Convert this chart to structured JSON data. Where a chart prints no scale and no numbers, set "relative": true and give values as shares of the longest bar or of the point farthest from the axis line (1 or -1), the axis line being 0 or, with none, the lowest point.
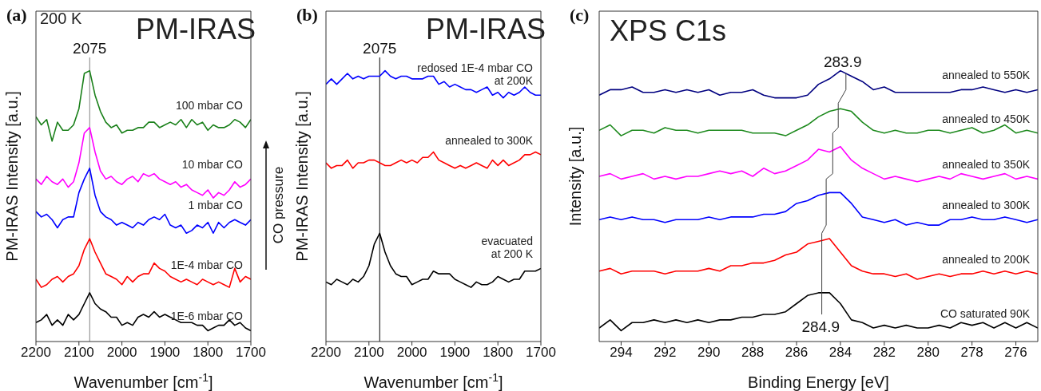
{
  "chart_data": [
    {
      "type": "line",
      "title": "(a)",
      "xlabel": "Wavenumber [cm$^{-1}$]",
      "ylabel": "PM-IRAS Intensity [a.u.]",
      "relative": true,
      "marker": "none",
      "line_style": "solid",
      "xlim": [
        2200,
        1700
      ],
      "xticks": [
        2200,
        2100,
        2000,
        1900,
        1800,
        1700
      ],
      "x": [
        2200,
        2187.5,
        2175,
        2162.5,
        2150,
        2137.5,
        2125,
        2112.5,
        2100,
        2087.5,
        2075,
        2062.5,
        2050,
        2037.5,
        2025,
        2012.5,
        2000,
        1987.5,
        1975,
        1962.5,
        1950,
        1937.5,
        1925,
        1912.5,
        1900,
        1887.5,
        1875,
        1862.5,
        1850,
        1837.5,
        1825,
        1812.5,
        1800,
        1787.5,
        1775,
        1762.5,
        1750,
        1737.5,
        1725,
        1712.5,
        1700
      ],
      "series": [
        {
          "name": "100 mbar CO",
          "color": "#1a801a",
          "values": [
            0.83,
            0.8,
            0.82,
            0.74,
            0.81,
            0.78,
            0.78,
            0.8,
            0.86,
            0.99,
            1.0,
            0.91,
            0.85,
            0.81,
            0.79,
            0.8,
            0.77,
            0.78,
            0.78,
            0.79,
            0.79,
            0.81,
            0.81,
            0.79,
            0.8,
            0.81,
            0.8,
            0.82,
            0.79,
            0.82,
            0.8,
            0.81,
            0.78,
            0.8,
            0.79,
            0.79,
            0.8,
            0.82,
            0.81,
            0.79,
            0.82
          ]
        },
        {
          "name": "10 mbar CO",
          "color": "#ff00ff",
          "values": [
            0.6,
            0.58,
            0.61,
            0.59,
            0.58,
            0.6,
            0.57,
            0.59,
            0.66,
            0.77,
            0.79,
            0.7,
            0.63,
            0.6,
            0.61,
            0.59,
            0.58,
            0.6,
            0.61,
            0.59,
            0.62,
            0.61,
            0.62,
            0.6,
            0.59,
            0.58,
            0.59,
            0.57,
            0.58,
            0.56,
            0.55,
            0.54,
            0.56,
            0.53,
            0.55,
            0.54,
            0.56,
            0.59,
            0.57,
            0.58,
            0.6
          ]
        },
        {
          "name": "1 mbar CO",
          "color": "#0000ff",
          "values": [
            0.48,
            0.46,
            0.47,
            0.45,
            0.42,
            0.45,
            0.46,
            0.46,
            0.55,
            0.6,
            0.64,
            0.54,
            0.48,
            0.46,
            0.45,
            0.43,
            0.44,
            0.43,
            0.42,
            0.44,
            0.43,
            0.45,
            0.46,
            0.45,
            0.47,
            0.43,
            0.42,
            0.43,
            0.4,
            0.41,
            0.43,
            0.42,
            0.44,
            0.4,
            0.44,
            0.42,
            0.44,
            0.45,
            0.44,
            0.43,
            0.45
          ]
        },
        {
          "name": "1E-4 mbar CO",
          "color": "#ff0000",
          "values": [
            0.23,
            0.2,
            0.21,
            0.23,
            0.24,
            0.22,
            0.24,
            0.25,
            0.28,
            0.34,
            0.38,
            0.33,
            0.29,
            0.25,
            0.24,
            0.23,
            0.21,
            0.24,
            0.22,
            0.24,
            0.25,
            0.25,
            0.29,
            0.27,
            0.26,
            0.24,
            0.23,
            0.22,
            0.23,
            0.22,
            0.21,
            0.23,
            0.22,
            0.21,
            0.22,
            0.21,
            0.2,
            0.27,
            0.22,
            0.24,
            0.23
          ]
        },
        {
          "name": "1E-6 mbar CO",
          "color": "#000000",
          "values": [
            0.07,
            0.08,
            0.1,
            0.06,
            0.08,
            0.06,
            0.1,
            0.08,
            0.1,
            0.14,
            0.18,
            0.14,
            0.12,
            0.11,
            0.09,
            0.09,
            0.06,
            0.07,
            0.06,
            0.09,
            0.1,
            0.09,
            0.11,
            0.09,
            0.1,
            0.09,
            0.08,
            0.07,
            0.07,
            0.07,
            0.06,
            0.06,
            0.04,
            0.05,
            0.06,
            0.06,
            0.08,
            0.06,
            0.07,
            0.05,
            0.04
          ]
        }
      ],
      "ref_lines": [
        {
          "axis": "x",
          "value": 2075,
          "label": "2075",
          "color": "#808080"
        }
      ],
      "annotations": [
        "200 K",
        "PM-IRAS",
        "CO pressure"
      ]
    },
    {
      "type": "line",
      "title": "(b)",
      "xlabel": "Wavenumber [cm$^{-1}$]",
      "ylabel": "PM-IRAS Intensity [a.u.]",
      "relative": true,
      "marker": "none",
      "line_style": "solid",
      "xlim": [
        2200,
        1700
      ],
      "xticks": [
        2200,
        2100,
        2000,
        1900,
        1800,
        1700
      ],
      "x": [
        2200,
        2187.5,
        2175,
        2162.5,
        2150,
        2137.5,
        2125,
        2112.5,
        2100,
        2087.5,
        2075,
        2062.5,
        2050,
        2037.5,
        2025,
        2012.5,
        2000,
        1987.5,
        1975,
        1962.5,
        1950,
        1937.5,
        1925,
        1912.5,
        1900,
        1887.5,
        1875,
        1862.5,
        1850,
        1837.5,
        1825,
        1812.5,
        1800,
        1787.5,
        1775,
        1762.5,
        1750,
        1737.5,
        1725,
        1712.5,
        1700
      ],
      "series": [
        {
          "name": "redosed 1E-4 mbar CO at 200K",
          "color": "#0000ff",
          "values": [
            0.95,
            0.97,
            0.95,
            0.97,
            0.99,
            0.97,
            0.98,
            0.97,
            0.98,
            0.98,
            0.98,
            1.0,
            0.98,
            0.97,
            0.98,
            0.98,
            0.97,
            0.97,
            0.97,
            0.98,
            0.98,
            0.95,
            0.96,
            0.94,
            0.95,
            0.94,
            0.93,
            0.93,
            0.92,
            0.93,
            0.94,
            0.91,
            0.92,
            0.9,
            0.92,
            0.91,
            0.92,
            0.94,
            0.92,
            0.91,
            0.91
          ]
        },
        {
          "name": "annealed to 300K",
          "color": "#ff0000",
          "values": [
            0.66,
            0.64,
            0.65,
            0.65,
            0.67,
            0.64,
            0.66,
            0.66,
            0.67,
            0.67,
            0.66,
            0.65,
            0.65,
            0.66,
            0.67,
            0.66,
            0.67,
            0.66,
            0.68,
            0.68,
            0.7,
            0.67,
            0.66,
            0.65,
            0.64,
            0.65,
            0.64,
            0.65,
            0.66,
            0.65,
            0.64,
            0.67,
            0.65,
            0.67,
            0.65,
            0.66,
            0.67,
            0.69,
            0.69,
            0.7,
            0.69
          ]
        },
        {
          "name": "evacuated at 200 K",
          "color": "#000000",
          "values": [
            0.22,
            0.21,
            0.23,
            0.22,
            0.21,
            0.23,
            0.22,
            0.24,
            0.28,
            0.36,
            0.4,
            0.33,
            0.28,
            0.25,
            0.24,
            0.24,
            0.21,
            0.22,
            0.23,
            0.23,
            0.26,
            0.25,
            0.25,
            0.25,
            0.23,
            0.22,
            0.21,
            0.2,
            0.22,
            0.21,
            0.21,
            0.22,
            0.24,
            0.23,
            0.22,
            0.23,
            0.23,
            0.26,
            0.26,
            0.26,
            0.27
          ]
        }
      ],
      "ref_lines": [
        {
          "axis": "x",
          "value": 2075,
          "label": "2075",
          "color": "#000000"
        }
      ],
      "annotations": [
        "PM-IRAS"
      ]
    },
    {
      "type": "line",
      "title": "(c)",
      "xlabel": "Binding Energy [eV]",
      "ylabel": "Intensity [a.u.]",
      "relative": true,
      "marker": "none",
      "line_style": "solid",
      "xlim": [
        295,
        275
      ],
      "xticks": [
        294,
        292,
        290,
        288,
        286,
        284,
        282,
        280,
        278,
        276
      ],
      "x": [
        295,
        294.5,
        294,
        293.5,
        293,
        292.5,
        292,
        291.5,
        291,
        290.5,
        290,
        289.5,
        289,
        288.5,
        288,
        287.5,
        287,
        286.5,
        286,
        285.5,
        285,
        284.5,
        284,
        283.5,
        283,
        282.5,
        282,
        281.5,
        281,
        280.5,
        280,
        279.5,
        279,
        278.5,
        278,
        277.5,
        277,
        276.5,
        276,
        275.5,
        275
      ],
      "series": [
        {
          "name": "annealed to 550K",
          "color": "#000080",
          "values": [
            0.91,
            0.93,
            0.93,
            0.94,
            0.92,
            0.92,
            0.93,
            0.92,
            0.93,
            0.92,
            0.93,
            0.91,
            0.92,
            0.92,
            0.93,
            0.91,
            0.9,
            0.9,
            0.9,
            0.91,
            0.95,
            0.97,
            1.0,
            0.98,
            0.96,
            0.93,
            0.94,
            0.92,
            0.92,
            0.92,
            0.92,
            0.92,
            0.92,
            0.93,
            0.93,
            0.94,
            0.93,
            0.92,
            0.93,
            0.92,
            0.93
          ]
        },
        {
          "name": "annealed to 450K",
          "color": "#1e8a1e",
          "values": [
            0.78,
            0.8,
            0.76,
            0.78,
            0.78,
            0.77,
            0.79,
            0.78,
            0.78,
            0.77,
            0.78,
            0.78,
            0.78,
            0.78,
            0.77,
            0.77,
            0.77,
            0.76,
            0.78,
            0.8,
            0.83,
            0.85,
            0.86,
            0.85,
            0.81,
            0.78,
            0.77,
            0.78,
            0.77,
            0.77,
            0.78,
            0.78,
            0.77,
            0.78,
            0.79,
            0.77,
            0.78,
            0.8,
            0.77,
            0.78,
            0.77
          ]
        },
        {
          "name": "annealed to 350K",
          "color": "#ff00ff",
          "values": [
            0.61,
            0.62,
            0.6,
            0.61,
            0.62,
            0.6,
            0.61,
            0.6,
            0.61,
            0.61,
            0.62,
            0.63,
            0.62,
            0.63,
            0.61,
            0.64,
            0.62,
            0.63,
            0.65,
            0.67,
            0.71,
            0.7,
            0.72,
            0.67,
            0.64,
            0.62,
            0.6,
            0.61,
            0.6,
            0.59,
            0.6,
            0.61,
            0.6,
            0.62,
            0.61,
            0.6,
            0.61,
            0.62,
            0.6,
            0.61,
            0.6
          ]
        },
        {
          "name": "annealed to 300K",
          "color": "#0000ff",
          "values": [
            0.45,
            0.46,
            0.45,
            0.46,
            0.45,
            0.45,
            0.44,
            0.45,
            0.45,
            0.45,
            0.46,
            0.45,
            0.46,
            0.46,
            0.46,
            0.47,
            0.47,
            0.48,
            0.51,
            0.52,
            0.54,
            0.55,
            0.55,
            0.51,
            0.46,
            0.45,
            0.44,
            0.45,
            0.43,
            0.44,
            0.43,
            0.43,
            0.45,
            0.45,
            0.46,
            0.45,
            0.45,
            0.46,
            0.45,
            0.44,
            0.45
          ]
        },
        {
          "name": "annealed to 200K",
          "color": "#ff0000",
          "values": [
            0.26,
            0.27,
            0.25,
            0.26,
            0.26,
            0.26,
            0.25,
            0.26,
            0.26,
            0.26,
            0.27,
            0.26,
            0.28,
            0.28,
            0.29,
            0.29,
            0.3,
            0.32,
            0.33,
            0.36,
            0.37,
            0.38,
            0.33,
            0.28,
            0.26,
            0.25,
            0.25,
            0.24,
            0.25,
            0.23,
            0.24,
            0.25,
            0.24,
            0.25,
            0.25,
            0.26,
            0.25,
            0.26,
            0.25,
            0.26,
            0.25
          ]
        },
        {
          "name": "CO saturated 90K",
          "color": "#000000",
          "values": [
            0.05,
            0.08,
            0.04,
            0.07,
            0.07,
            0.08,
            0.07,
            0.08,
            0.07,
            0.08,
            0.07,
            0.08,
            0.08,
            0.09,
            0.09,
            0.1,
            0.1,
            0.11,
            0.14,
            0.17,
            0.18,
            0.18,
            0.14,
            0.08,
            0.07,
            0.05,
            0.06,
            0.05,
            0.06,
            0.05,
            0.05,
            0.06,
            0.05,
            0.07,
            0.06,
            0.07,
            0.05,
            0.07,
            0.05,
            0.07,
            0.05
          ]
        },
        {
          "type": "line",
          "color": "#404040",
          "x": [
            284.85,
            284.85,
            284.65,
            284.65,
            284.35,
            284.35,
            284.1,
            284.1,
            283.75,
            283.75
          ],
          "values": [
            0.1,
            0.4,
            0.43,
            0.6,
            0.62,
            0.77,
            0.79,
            0.88,
            0.93,
            0.99
          ]
        }
      ],
      "annotations": [
        "XPS C1s",
        {
          "text": "283.9",
          "x": 283.9,
          "y": 0.99
        },
        {
          "text": "284.9",
          "x": 284.9,
          "y": 0.1
        }
      ]
    }
  ]
}
